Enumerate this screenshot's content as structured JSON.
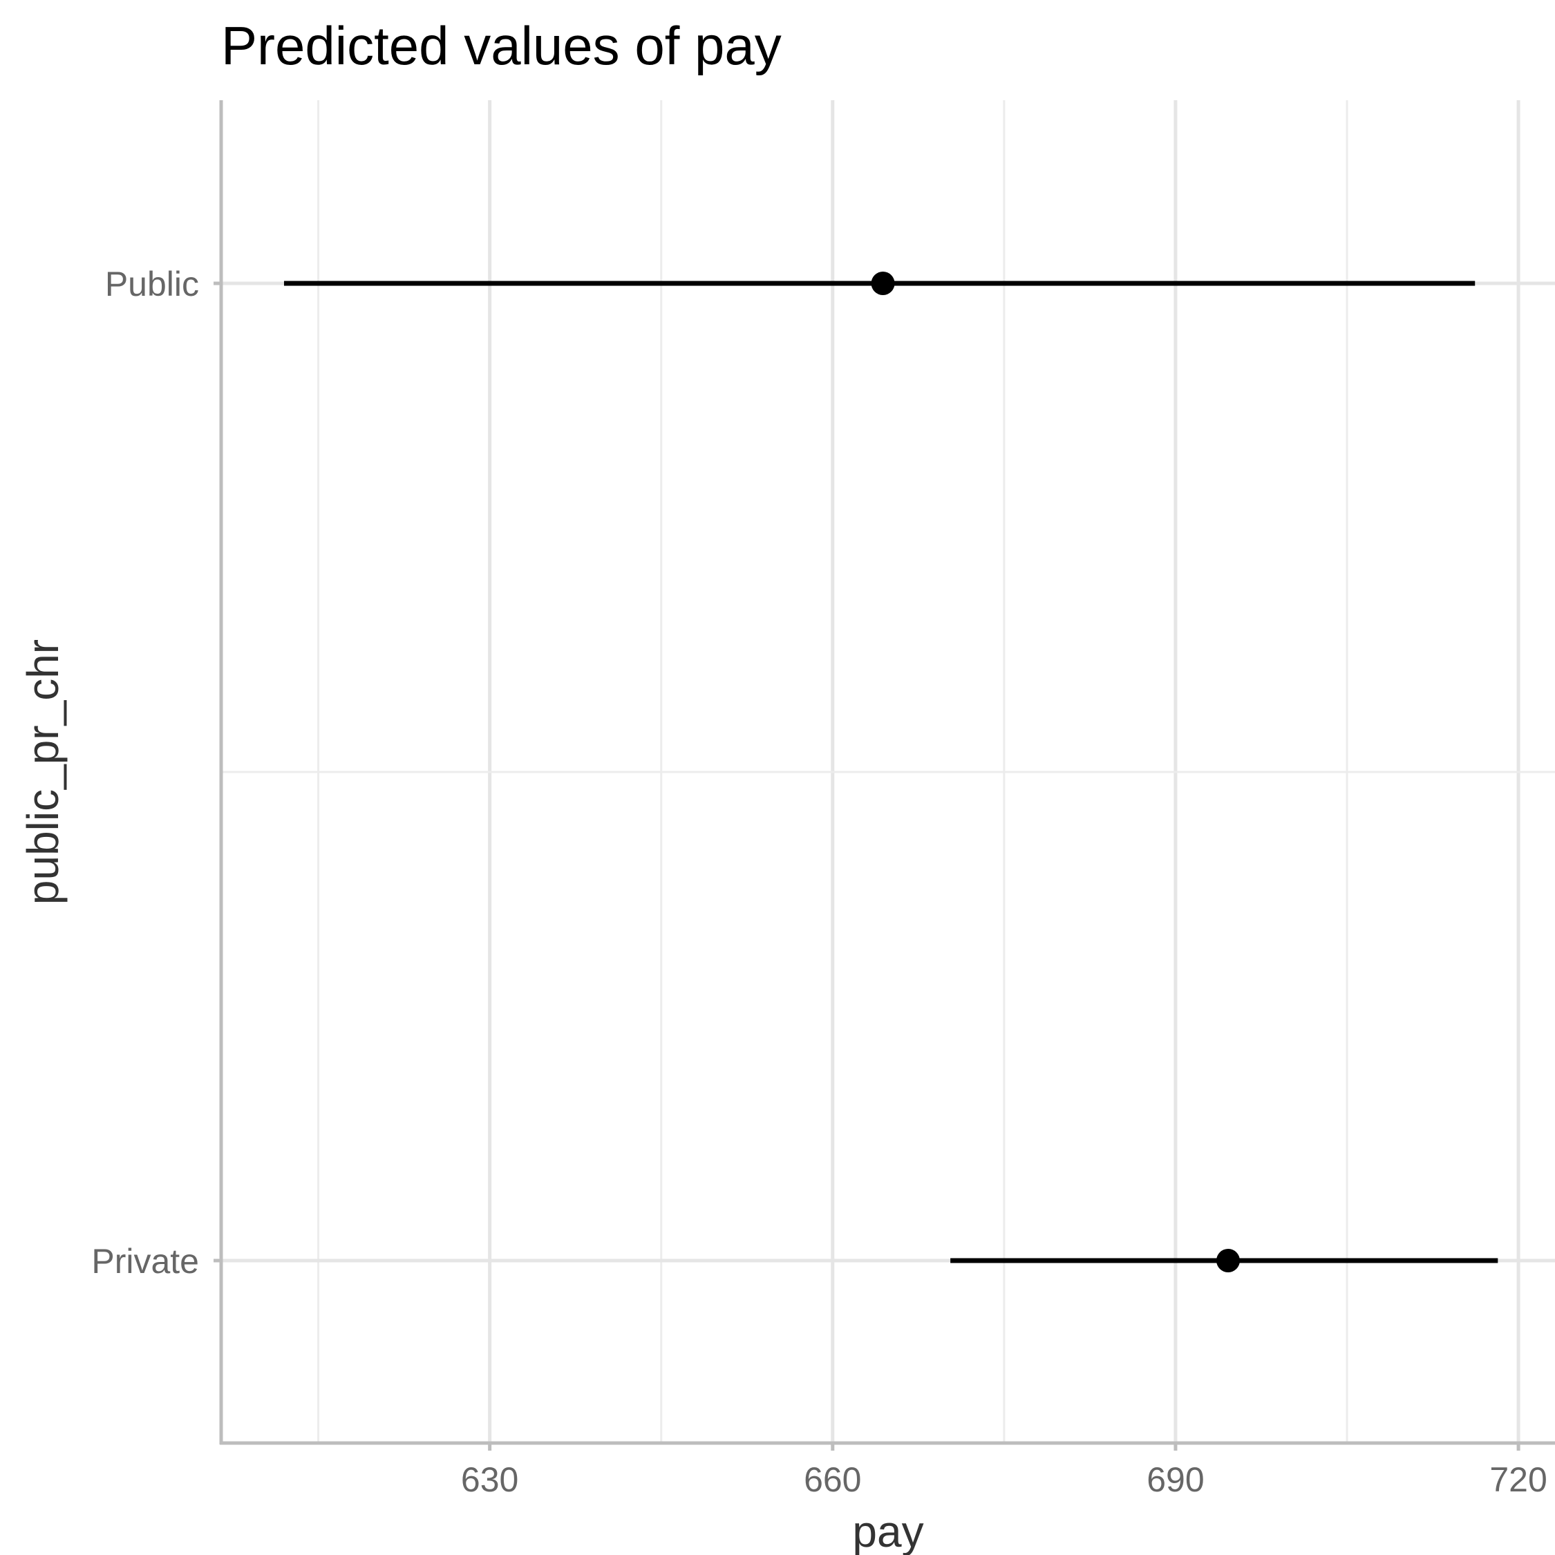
{
  "chart_data": {
    "type": "dot-errorbar",
    "title": "Predicted values of pay",
    "xlabel": "pay",
    "ylabel": "public_pr_chr",
    "xlim": [
      606.5,
      723.2
    ],
    "x_ticks": [
      630,
      660,
      690,
      720
    ],
    "x_tick_labels": [
      "630",
      "660",
      "690",
      "720"
    ],
    "x_minor_ticks": [
      615,
      645,
      675,
      705
    ],
    "categories": [
      "Private",
      "Public"
    ],
    "series": [
      {
        "points": [
          {
            "category": "Public",
            "predicted": 664.4,
            "conf_low": 612.0,
            "conf_high": 716.2
          },
          {
            "category": "Private",
            "predicted": 694.6,
            "conf_low": 670.3,
            "conf_high": 718.2
          }
        ]
      }
    ],
    "grid": true,
    "legend": "none",
    "colors": {
      "point": "#000000",
      "grid": "#e5e5e5",
      "axis": "#bdbdbd",
      "tick_label": "#666666",
      "axis_title": "#333333"
    }
  }
}
